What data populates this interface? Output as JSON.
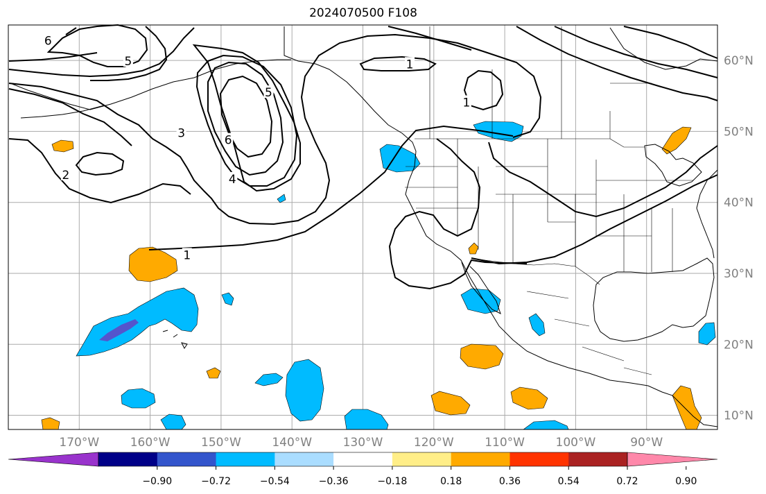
{
  "title": "2024070500 F108",
  "map": {
    "projection": "plate-carree",
    "lon_range": [
      -180,
      -80
    ],
    "lat_range": [
      8,
      65
    ],
    "lon_ticks": [
      -170,
      -160,
      -150,
      -140,
      -130,
      -120,
      -110,
      -100,
      -90
    ],
    "lon_labels": [
      "170°W",
      "160°W",
      "150°W",
      "140°W",
      "130°W",
      "120°W",
      "110°W",
      "100°W",
      "90°W"
    ],
    "lat_ticks": [
      10,
      20,
      30,
      40,
      50,
      60
    ],
    "lat_labels": [
      "10°N",
      "20°N",
      "30°N",
      "40°N",
      "50°N",
      "60°N"
    ],
    "gridlines": true
  },
  "contour_labels": [
    {
      "text": "6",
      "lon": -174.4,
      "lat": 62.8
    },
    {
      "text": "5",
      "lon": -163.1,
      "lat": 59.9
    },
    {
      "text": "5",
      "lon": -143.3,
      "lat": 55.5
    },
    {
      "text": "3",
      "lon": -155.6,
      "lat": 49.8
    },
    {
      "text": "6",
      "lon": -149.0,
      "lat": 48.8
    },
    {
      "text": "4",
      "lon": -148.4,
      "lat": 43.3
    },
    {
      "text": "2",
      "lon": -171.9,
      "lat": 43.9
    },
    {
      "text": "1",
      "lon": -154.8,
      "lat": 32.6
    },
    {
      "text": "1",
      "lon": -123.4,
      "lat": 59.5
    },
    {
      "text": "1",
      "lon": -115.4,
      "lat": 54.1
    }
  ],
  "colorbar": {
    "colors": [
      "#9933cc",
      "#000088",
      "#3355cc",
      "#00bbff",
      "#aaddff",
      "#ffffff",
      "#ffee88",
      "#ffaa00",
      "#ff3300",
      "#aa2222",
      "#ff88aa"
    ],
    "ticks": [
      "−0.90",
      "−0.72",
      "−0.54",
      "−0.36",
      "−0.18",
      "0.18",
      "0.36",
      "0.54",
      "0.72",
      "0.90"
    ]
  }
}
